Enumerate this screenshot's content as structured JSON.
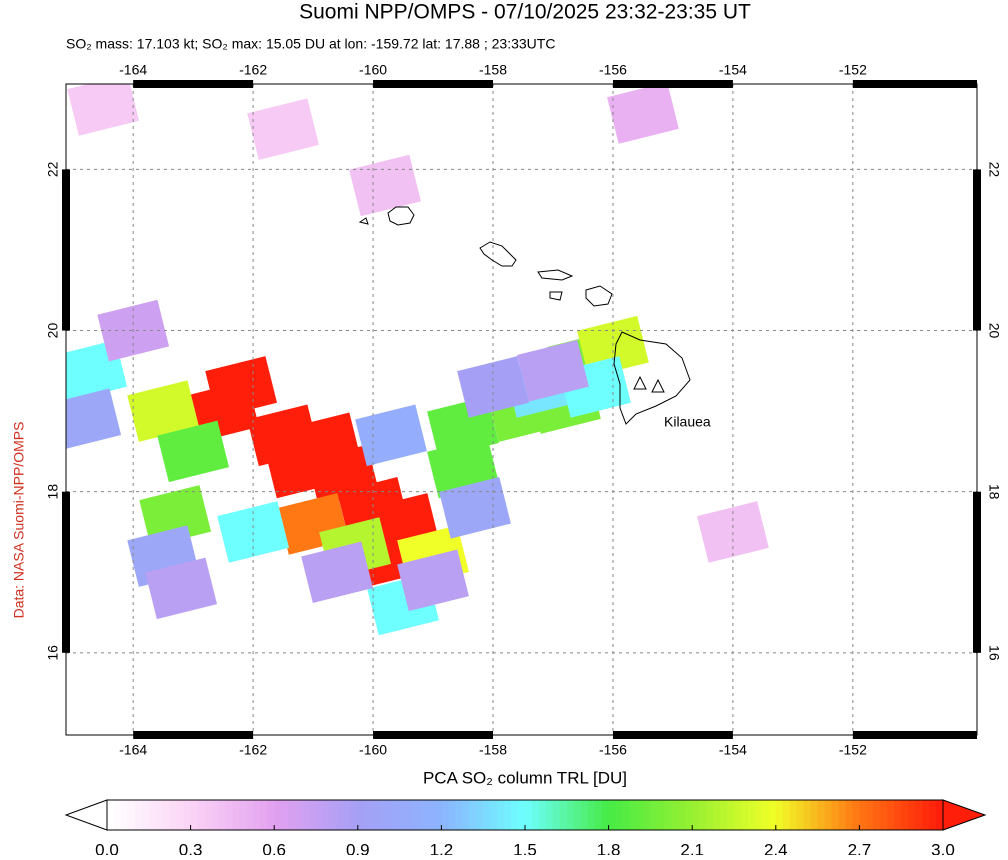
{
  "chart_data": {
    "type": "map",
    "title": "Suomi NPP/OMPS - 07/10/2025 23:32-23:35 UT",
    "subtitle": "SO₂ mass: 17.103 kt; SO₂ max: 15.05 DU at lon: -159.72 lat: 17.88 ; 23:33UTC",
    "credit": "Data: NASA Suomi-NPP/OMPS",
    "annotation": "Kilauea",
    "xlim": [
      -165.12,
      -149.93
    ],
    "ylim": [
      14.98,
      23.06
    ],
    "xticks": [
      -164,
      -162,
      -160,
      -158,
      -156,
      -154,
      -152
    ],
    "yticks": [
      16,
      18,
      20,
      22
    ],
    "grid": true,
    "colorbar": {
      "label": "PCA SO₂ column TRL [DU]",
      "lim": [
        0,
        3
      ],
      "ticks": [
        {
          "value": 0,
          "label": "0.0"
        },
        0.3,
        0.6,
        0.9,
        1.2,
        1.5,
        1.8,
        2.1,
        2.4,
        2.7,
        {
          "value": 3,
          "label": "3.0"
        }
      ]
    },
    "cells": [
      {
        "lon": -162.5,
        "lat": 19.0,
        "value": 3.0
      },
      {
        "lon": -161.5,
        "lat": 18.7,
        "value": 3.0
      },
      {
        "lon": -161.2,
        "lat": 18.3,
        "value": 3.0
      },
      {
        "lon": -160.5,
        "lat": 18.2,
        "value": 3.0
      },
      {
        "lon": -160.0,
        "lat": 17.8,
        "value": 3.0
      },
      {
        "lon": -159.5,
        "lat": 17.6,
        "value": 3.0
      },
      {
        "lon": -159.7,
        "lat": 17.2,
        "value": 3.0
      },
      {
        "lon": -162.2,
        "lat": 19.3,
        "value": 3.0
      },
      {
        "lon": -160.8,
        "lat": 18.6,
        "value": 3.0
      },
      {
        "lon": -161.0,
        "lat": 17.6,
        "value": 2.7
      },
      {
        "lon": -163.5,
        "lat": 19.0,
        "value": 2.3
      },
      {
        "lon": -159.0,
        "lat": 17.2,
        "value": 2.4
      },
      {
        "lon": -160.3,
        "lat": 17.3,
        "value": 2.2
      },
      {
        "lon": -163.0,
        "lat": 18.5,
        "value": 1.9
      },
      {
        "lon": -163.3,
        "lat": 17.7,
        "value": 2.0
      },
      {
        "lon": -158.5,
        "lat": 18.3,
        "value": 1.9
      },
      {
        "lon": -158.5,
        "lat": 18.8,
        "value": 1.9
      },
      {
        "lon": -157.5,
        "lat": 19.0,
        "value": 2.0
      },
      {
        "lon": -156.5,
        "lat": 19.6,
        "value": 2.0
      },
      {
        "lon": -156.0,
        "lat": 19.8,
        "value": 2.3
      },
      {
        "lon": -156.8,
        "lat": 19.1,
        "value": 2.0
      },
      {
        "lon": -164.7,
        "lat": 19.5,
        "value": 1.5
      },
      {
        "lon": -162.0,
        "lat": 17.5,
        "value": 1.5
      },
      {
        "lon": -159.5,
        "lat": 16.6,
        "value": 1.5
      },
      {
        "lon": -157.2,
        "lat": 19.3,
        "value": 1.4
      },
      {
        "lon": -156.3,
        "lat": 19.3,
        "value": 1.5
      },
      {
        "lon": -164.8,
        "lat": 18.9,
        "value": 1.0
      },
      {
        "lon": -163.5,
        "lat": 17.2,
        "value": 1.0
      },
      {
        "lon": -163.2,
        "lat": 16.8,
        "value": 0.8
      },
      {
        "lon": -160.6,
        "lat": 17.0,
        "value": 0.8
      },
      {
        "lon": -159.0,
        "lat": 16.9,
        "value": 0.8
      },
      {
        "lon": -158.3,
        "lat": 17.8,
        "value": 1.0
      },
      {
        "lon": -159.7,
        "lat": 18.7,
        "value": 1.1
      },
      {
        "lon": -158.0,
        "lat": 19.3,
        "value": 0.9
      },
      {
        "lon": -157.0,
        "lat": 19.5,
        "value": 0.8
      },
      {
        "lon": -164.0,
        "lat": 20.0,
        "value": 0.7
      },
      {
        "lon": -155.5,
        "lat": 22.7,
        "value": 0.5
      },
      {
        "lon": -159.8,
        "lat": 21.8,
        "value": 0.4
      },
      {
        "lon": -161.5,
        "lat": 22.5,
        "value": 0.35
      },
      {
        "lon": -164.5,
        "lat": 22.8,
        "value": 0.35
      },
      {
        "lon": -154.0,
        "lat": 17.5,
        "value": 0.4
      }
    ]
  }
}
